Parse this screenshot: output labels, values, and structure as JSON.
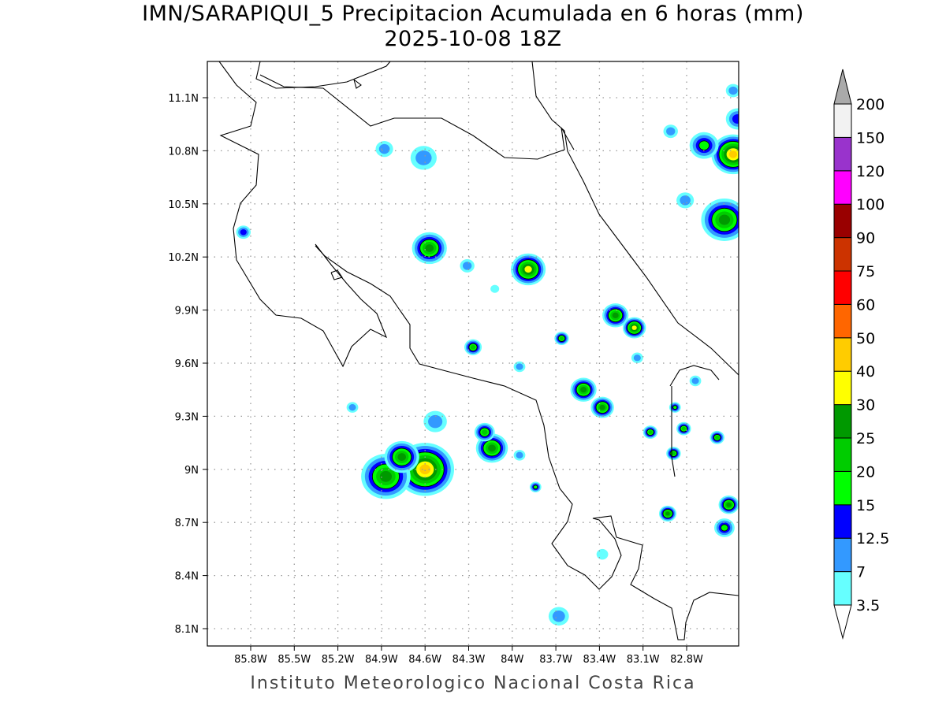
{
  "title": "IMN/SARAPIQUI_5 Precipitacion Acumulada en 6 horas (mm)",
  "subtitle": "2025-10-08 18Z",
  "footer": "Instituto Meteorologico Nacional Costa Rica",
  "map": {
    "lon_range": [
      -86.1,
      -82.45
    ],
    "lat_range": [
      8.0,
      11.3
    ],
    "grid": "dotted",
    "lon_ticks": [
      "85.8W",
      "85.5W",
      "85.2W",
      "84.9W",
      "84.6W",
      "84.3W",
      "84W",
      "83.7W",
      "83.4W",
      "83.1W",
      "82.8W"
    ],
    "lat_ticks": [
      "11.1N",
      "10.8N",
      "10.5N",
      "10.2N",
      "9.9N",
      "9.6N",
      "9.3N",
      "9N",
      "8.7N",
      "8.4N",
      "8.1N"
    ]
  },
  "colorbar": {
    "labels": [
      "3.5",
      "7",
      "12.5",
      "15",
      "20",
      "25",
      "30",
      "40",
      "50",
      "60",
      "75",
      "90",
      "100",
      "120",
      "150",
      "200"
    ],
    "colors": [
      "#66ffff",
      "#3399ff",
      "#0000ff",
      "#00ff00",
      "#00cc00",
      "#009900",
      "#ffff00",
      "#ffcc00",
      "#ff6600",
      "#ff0000",
      "#cc3300",
      "#990000",
      "#ff00ff",
      "#9933cc",
      "#f2f2f2"
    ],
    "upper_arrow_color": "#aaaaaa",
    "lower_arrow_color": "#ffffff"
  },
  "precip_cells": [
    {
      "lon": -84.6,
      "lat": 9.0,
      "max": 40,
      "size": 0.2
    },
    {
      "lon": -84.87,
      "lat": 8.96,
      "max": 25,
      "size": 0.17
    },
    {
      "lon": -84.76,
      "lat": 9.07,
      "max": 25,
      "size": 0.12
    },
    {
      "lon": -84.57,
      "lat": 10.25,
      "max": 25,
      "size": 0.12
    },
    {
      "lon": -83.89,
      "lat": 10.13,
      "max": 30,
      "size": 0.12
    },
    {
      "lon": -82.48,
      "lat": 10.78,
      "max": 40,
      "size": 0.15
    },
    {
      "lon": -82.54,
      "lat": 10.41,
      "max": 25,
      "size": 0.16
    },
    {
      "lon": -82.68,
      "lat": 10.83,
      "max": 15,
      "size": 0.1
    },
    {
      "lon": -83.29,
      "lat": 9.87,
      "max": 25,
      "size": 0.09
    },
    {
      "lon": -83.16,
      "lat": 9.8,
      "max": 30,
      "size": 0.08
    },
    {
      "lon": -83.51,
      "lat": 9.45,
      "max": 25,
      "size": 0.09
    },
    {
      "lon": -83.38,
      "lat": 9.35,
      "max": 25,
      "size": 0.08
    },
    {
      "lon": -84.14,
      "lat": 9.12,
      "max": 25,
      "size": 0.11
    },
    {
      "lon": -84.19,
      "lat": 9.21,
      "max": 20,
      "size": 0.07
    },
    {
      "lon": -84.27,
      "lat": 9.69,
      "max": 20,
      "size": 0.06
    },
    {
      "lon": -83.66,
      "lat": 9.74,
      "max": 20,
      "size": 0.05
    },
    {
      "lon": -82.51,
      "lat": 8.8,
      "max": 25,
      "size": 0.07
    },
    {
      "lon": -82.54,
      "lat": 8.67,
      "max": 15,
      "size": 0.07
    },
    {
      "lon": -82.59,
      "lat": 9.18,
      "max": 20,
      "size": 0.05
    },
    {
      "lon": -82.82,
      "lat": 9.23,
      "max": 20,
      "size": 0.05
    },
    {
      "lon": -82.89,
      "lat": 9.09,
      "max": 20,
      "size": 0.05
    },
    {
      "lon": -82.93,
      "lat": 8.75,
      "max": 25,
      "size": 0.06
    },
    {
      "lon": -83.05,
      "lat": 9.21,
      "max": 20,
      "size": 0.05
    },
    {
      "lon": -82.88,
      "lat": 9.35,
      "max": 15,
      "size": 0.04
    },
    {
      "lon": -85.85,
      "lat": 10.34,
      "max": 12.5,
      "size": 0.05
    },
    {
      "lon": -84.61,
      "lat": 10.76,
      "max": 7,
      "size": 0.09
    },
    {
      "lon": -84.88,
      "lat": 10.81,
      "max": 7,
      "size": 0.06
    },
    {
      "lon": -83.84,
      "lat": 8.9,
      "max": 15,
      "size": 0.04
    },
    {
      "lon": -83.68,
      "lat": 8.17,
      "max": 7,
      "size": 0.07
    },
    {
      "lon": -83.38,
      "lat": 8.52,
      "max": 3.5,
      "size": 0.04
    },
    {
      "lon": -84.53,
      "lat": 9.27,
      "max": 7,
      "size": 0.08
    },
    {
      "lon": -85.1,
      "lat": 9.35,
      "max": 7,
      "size": 0.04
    },
    {
      "lon": -84.31,
      "lat": 10.15,
      "max": 7,
      "size": 0.05
    },
    {
      "lon": -83.95,
      "lat": 9.58,
      "max": 7,
      "size": 0.04
    },
    {
      "lon": -82.91,
      "lat": 10.91,
      "max": 7,
      "size": 0.05
    },
    {
      "lon": -82.48,
      "lat": 11.14,
      "max": 7,
      "size": 0.05
    },
    {
      "lon": -82.45,
      "lat": 10.98,
      "max": 12.5,
      "size": 0.08
    },
    {
      "lon": -82.81,
      "lat": 10.52,
      "max": 7,
      "size": 0.06
    },
    {
      "lon": -83.14,
      "lat": 9.63,
      "max": 7,
      "size": 0.04
    },
    {
      "lon": -82.74,
      "lat": 9.5,
      "max": 7,
      "size": 0.04
    },
    {
      "lon": -83.95,
      "lat": 9.08,
      "max": 7,
      "size": 0.04
    },
    {
      "lon": -84.12,
      "lat": 10.02,
      "max": 3.5,
      "size": 0.03
    }
  ]
}
